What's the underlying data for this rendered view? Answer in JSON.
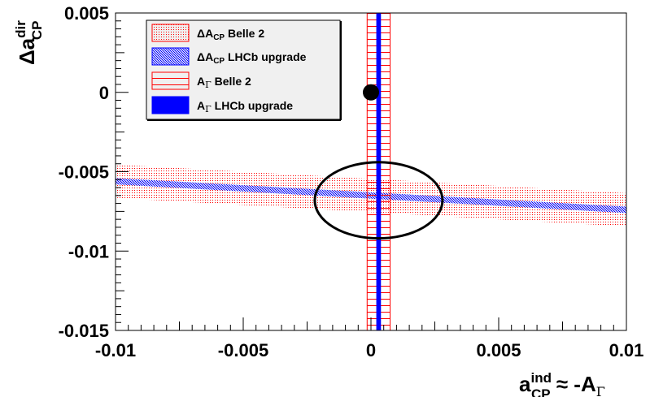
{
  "chart_data": {
    "type": "scatter",
    "xlim": [
      -0.01,
      0.01
    ],
    "ylim": [
      -0.015,
      0.005
    ],
    "x_ticks": [
      {
        "value": -0.01,
        "label": "-0.01"
      },
      {
        "value": -0.005,
        "label": "-0.005"
      },
      {
        "value": 0,
        "label": "0"
      },
      {
        "value": 0.005,
        "label": "0.005"
      },
      {
        "value": 0.01,
        "label": "0.01"
      }
    ],
    "y_ticks": [
      {
        "value": 0.005,
        "label": "0.005"
      },
      {
        "value": 0,
        "label": "0"
      },
      {
        "value": -0.005,
        "label": "-0.005"
      },
      {
        "value": -0.01,
        "label": "-0.01"
      },
      {
        "value": -0.015,
        "label": "-0.015"
      }
    ],
    "xlabel": {
      "base": "a",
      "sup": "ind",
      "sub": "CP",
      "tail": " ≈ -A",
      "tail_sub": "Γ"
    },
    "ylabel": {
      "base": "Δa",
      "sup": "dir",
      "sub": "CP"
    },
    "grid": false,
    "legend": {
      "position": "top-left",
      "entries": [
        {
          "main": "ΔA",
          "sub": "CP",
          "rest": " Belle 2",
          "color": "#ff0000",
          "style": "fine-dots"
        },
        {
          "main": "ΔA",
          "sub": "CP",
          "rest": " LHCb upgrade",
          "color": "#0000ff",
          "style": "crosshatch"
        },
        {
          "main": "A",
          "sub": "Γ",
          "rest": " Belle 2",
          "color": "#ff0000",
          "style": "horizontal-lines"
        },
        {
          "main": "A",
          "sub": "Γ",
          "rest": " LHCb upgrade",
          "color": "#0000ff",
          "style": "solid"
        }
      ]
    },
    "bands": [
      {
        "name": "ΔA_CP Belle 2",
        "orientation": "sloped",
        "x": [
          -0.01,
          0.01
        ],
        "y_center": [
          -0.0056,
          -0.0074
        ],
        "half_width": 0.00105,
        "color": "#ff0000",
        "style": "fine-dots"
      },
      {
        "name": "ΔA_CP LHCb upgrade",
        "orientation": "sloped",
        "x": [
          -0.01,
          0.01
        ],
        "y_center": [
          -0.0056,
          -0.0074
        ],
        "half_width": 0.0002,
        "color": "#0000ff",
        "style": "crosshatch"
      },
      {
        "name": "A_Γ Belle 2",
        "orientation": "vertical",
        "x_center": 0.0003,
        "half_width": 0.00045,
        "color": "#ff0000",
        "style": "horizontal-lines"
      },
      {
        "name": "A_Γ LHCb upgrade",
        "orientation": "vertical",
        "x_center": 0.0003,
        "half_width": 7.5e-05,
        "color": "#0000ff",
        "style": "solid"
      }
    ],
    "points": [
      {
        "x": 0,
        "y": 0,
        "marker": "filled-circle",
        "color": "#000000"
      }
    ],
    "ellipses": [
      {
        "cx": 0.0003,
        "cy": -0.0068,
        "rx": 0.0025,
        "ry": 0.0024,
        "color": "#000000"
      }
    ]
  }
}
